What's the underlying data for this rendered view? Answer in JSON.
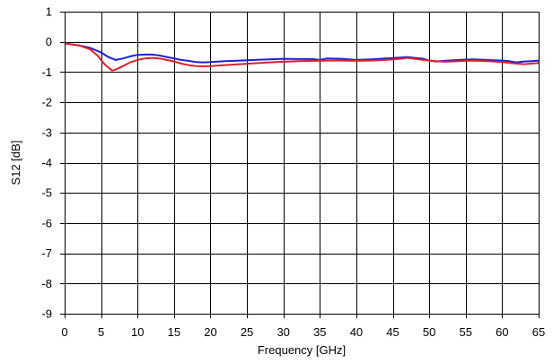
{
  "chart_data": {
    "type": "line",
    "title": "",
    "xlabel": "Frequency [GHz]",
    "ylabel": "S12 [dB]",
    "xlim": [
      0,
      65
    ],
    "ylim": [
      -9,
      1
    ],
    "xticks": [
      0,
      5,
      10,
      15,
      20,
      25,
      30,
      35,
      40,
      45,
      50,
      55,
      60,
      65
    ],
    "yticks": [
      1,
      0,
      -1,
      -2,
      -3,
      -4,
      -5,
      -6,
      -7,
      -8,
      -9
    ],
    "grid": true,
    "legend": "none",
    "series": [
      {
        "color": "#1f1fd6",
        "points": [
          [
            0,
            -0.05
          ],
          [
            2,
            -0.12
          ],
          [
            3.5,
            -0.2
          ],
          [
            5,
            -0.35
          ],
          [
            6,
            -0.5
          ],
          [
            7,
            -0.6
          ],
          [
            8,
            -0.55
          ],
          [
            9,
            -0.48
          ],
          [
            10,
            -0.43
          ],
          [
            11,
            -0.42
          ],
          [
            12,
            -0.42
          ],
          [
            13,
            -0.45
          ],
          [
            14,
            -0.5
          ],
          [
            15,
            -0.55
          ],
          [
            16,
            -0.6
          ],
          [
            17,
            -0.63
          ],
          [
            18,
            -0.67
          ],
          [
            19,
            -0.68
          ],
          [
            20,
            -0.67
          ],
          [
            22,
            -0.64
          ],
          [
            24,
            -0.62
          ],
          [
            26,
            -0.6
          ],
          [
            28,
            -0.58
          ],
          [
            30,
            -0.56
          ],
          [
            32,
            -0.57
          ],
          [
            34,
            -0.57
          ],
          [
            35,
            -0.6
          ],
          [
            36,
            -0.55
          ],
          [
            38,
            -0.56
          ],
          [
            40,
            -0.6
          ],
          [
            42,
            -0.58
          ],
          [
            44,
            -0.55
          ],
          [
            46,
            -0.52
          ],
          [
            47,
            -0.5
          ],
          [
            48,
            -0.53
          ],
          [
            49,
            -0.55
          ],
          [
            50,
            -0.62
          ],
          [
            51,
            -0.65
          ],
          [
            52,
            -0.63
          ],
          [
            54,
            -0.6
          ],
          [
            56,
            -0.58
          ],
          [
            58,
            -0.6
          ],
          [
            60,
            -0.62
          ],
          [
            61,
            -0.64
          ],
          [
            62,
            -0.68
          ],
          [
            63,
            -0.65
          ],
          [
            64,
            -0.64
          ],
          [
            65,
            -0.62
          ]
        ]
      },
      {
        "color": "#e0202a",
        "points": [
          [
            0,
            -0.05
          ],
          [
            2,
            -0.12
          ],
          [
            3.5,
            -0.25
          ],
          [
            4.5,
            -0.45
          ],
          [
            5.5,
            -0.75
          ],
          [
            6.5,
            -0.95
          ],
          [
            7,
            -0.92
          ],
          [
            8,
            -0.8
          ],
          [
            9,
            -0.68
          ],
          [
            10,
            -0.6
          ],
          [
            11,
            -0.55
          ],
          [
            12,
            -0.53
          ],
          [
            13,
            -0.55
          ],
          [
            14,
            -0.6
          ],
          [
            15,
            -0.65
          ],
          [
            16,
            -0.72
          ],
          [
            17,
            -0.77
          ],
          [
            18,
            -0.8
          ],
          [
            19,
            -0.81
          ],
          [
            20,
            -0.8
          ],
          [
            22,
            -0.77
          ],
          [
            24,
            -0.74
          ],
          [
            26,
            -0.71
          ],
          [
            28,
            -0.68
          ],
          [
            30,
            -0.66
          ],
          [
            32,
            -0.64
          ],
          [
            34,
            -0.63
          ],
          [
            35,
            -0.63
          ],
          [
            36,
            -0.62
          ],
          [
            38,
            -0.62
          ],
          [
            40,
            -0.63
          ],
          [
            42,
            -0.62
          ],
          [
            44,
            -0.6
          ],
          [
            46,
            -0.56
          ],
          [
            47,
            -0.53
          ],
          [
            48,
            -0.56
          ],
          [
            50,
            -0.62
          ],
          [
            52,
            -0.66
          ],
          [
            54,
            -0.64
          ],
          [
            56,
            -0.62
          ],
          [
            58,
            -0.64
          ],
          [
            60,
            -0.67
          ],
          [
            61,
            -0.7
          ],
          [
            62,
            -0.72
          ],
          [
            63,
            -0.74
          ],
          [
            64,
            -0.72
          ],
          [
            65,
            -0.7
          ]
        ]
      }
    ]
  }
}
